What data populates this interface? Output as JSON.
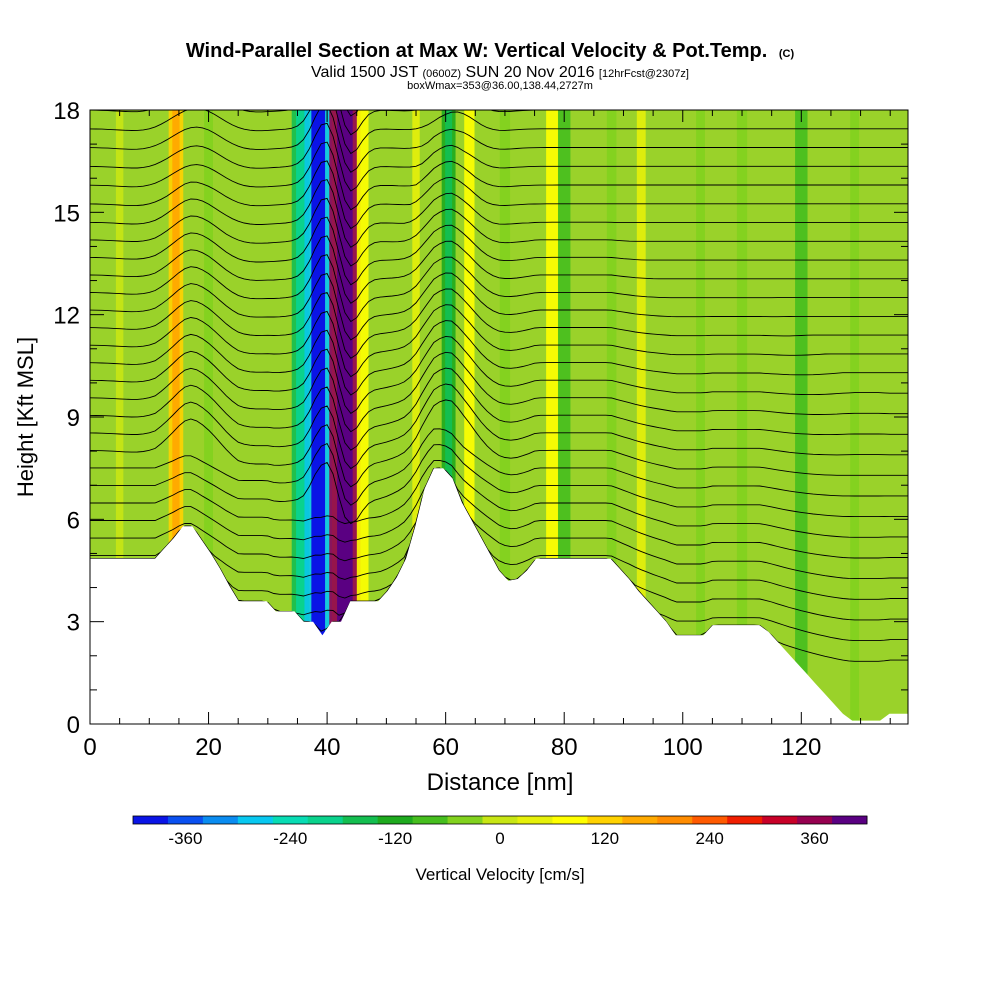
{
  "chart_data": {
    "type": "heatmap",
    "title": "Wind-Parallel Section at Max W: Vertical Velocity & Pot.Temp.",
    "title_mark": "(C)",
    "subtitle_parts": [
      "Valid 1500 JST",
      "(0600Z)",
      "SUN 20 Nov 2016",
      "[12hrFcst@2307z]"
    ],
    "info_line": "boxWmax=353@36.00,138.44,2727m",
    "xlabel": "Distance [nm]",
    "ylabel": "Height [Kft MSL]",
    "xlim": [
      0,
      138
    ],
    "ylim": [
      0,
      18
    ],
    "x_ticks": [
      "0",
      "20",
      "40",
      "60",
      "80",
      "100",
      "120"
    ],
    "y_ticks": [
      "0",
      "3",
      "6",
      "9",
      "12",
      "15",
      "18"
    ],
    "grid": false,
    "colorbar": {
      "label": "Vertical Velocity [cm/s]",
      "tick_labels": [
        "-360",
        "-240",
        "-120",
        "0",
        "120",
        "240",
        "360"
      ],
      "range": [
        -420,
        420
      ],
      "colors": [
        "#0a14e6",
        "#0a50f0",
        "#0a8cf0",
        "#08c8f0",
        "#08dcb4",
        "#0ad28c",
        "#14be50",
        "#1eaa1e",
        "#46be1e",
        "#82d21e",
        "#c8e614",
        "#e6f00a",
        "#ffff00",
        "#ffd200",
        "#ffaa00",
        "#ff8c00",
        "#ff5a00",
        "#f01e00",
        "#c80028",
        "#960050",
        "#5a0082"
      ]
    },
    "vertical_velocity_bands": [
      {
        "x": 5,
        "w": -20
      },
      {
        "x": 14.5,
        "w": 120
      },
      {
        "x": 20,
        "w": -40
      },
      {
        "x": 35.5,
        "w": -160
      },
      {
        "x": 38.5,
        "w": -300
      },
      {
        "x": 43,
        "w": 353
      },
      {
        "x": 46,
        "w": 80
      },
      {
        "x": 55,
        "w": 20
      },
      {
        "x": 60.5,
        "w": -110
      },
      {
        "x": 64,
        "w": 60
      },
      {
        "x": 70,
        "w": -60
      },
      {
        "x": 78,
        "w": 90
      },
      {
        "x": 80,
        "w": -90
      },
      {
        "x": 88,
        "w": -50
      },
      {
        "x": 93,
        "w": 40
      },
      {
        "x": 103,
        "w": -40
      },
      {
        "x": 110,
        "w": -60
      },
      {
        "x": 120,
        "w": -90
      },
      {
        "x": 129,
        "w": -40
      }
    ],
    "terrain_height_kft": [
      4.85,
      4.85,
      4.85,
      4.85,
      4.85,
      4.85,
      4.85,
      4.85,
      5.15,
      5.45,
      5.8,
      5.8,
      5.4,
      5.0,
      4.55,
      4.05,
      3.6,
      3.6,
      3.6,
      3.6,
      3.3,
      3.3,
      3.3,
      3.0,
      3.0,
      2.6,
      3.0,
      3.0,
      3.6,
      3.6,
      3.6,
      3.6,
      3.9,
      4.3,
      4.85,
      5.8,
      6.9,
      7.5,
      7.5,
      7.2,
      6.5,
      6.0,
      5.5,
      5.0,
      4.5,
      4.2,
      4.25,
      4.5,
      4.85,
      4.85,
      4.85,
      4.85,
      4.85,
      4.85,
      4.85,
      4.85,
      4.85,
      4.55,
      4.25,
      3.9,
      3.6,
      3.3,
      3.0,
      2.6,
      2.6,
      2.6,
      2.6,
      2.9,
      2.9,
      2.9,
      2.9,
      2.9,
      2.9,
      2.7,
      2.4,
      2.1,
      1.8,
      1.5,
      1.2,
      0.9,
      0.6,
      0.3,
      0.1,
      0.1,
      0.1,
      0.1,
      0.3,
      0.3,
      0.3
    ]
  }
}
